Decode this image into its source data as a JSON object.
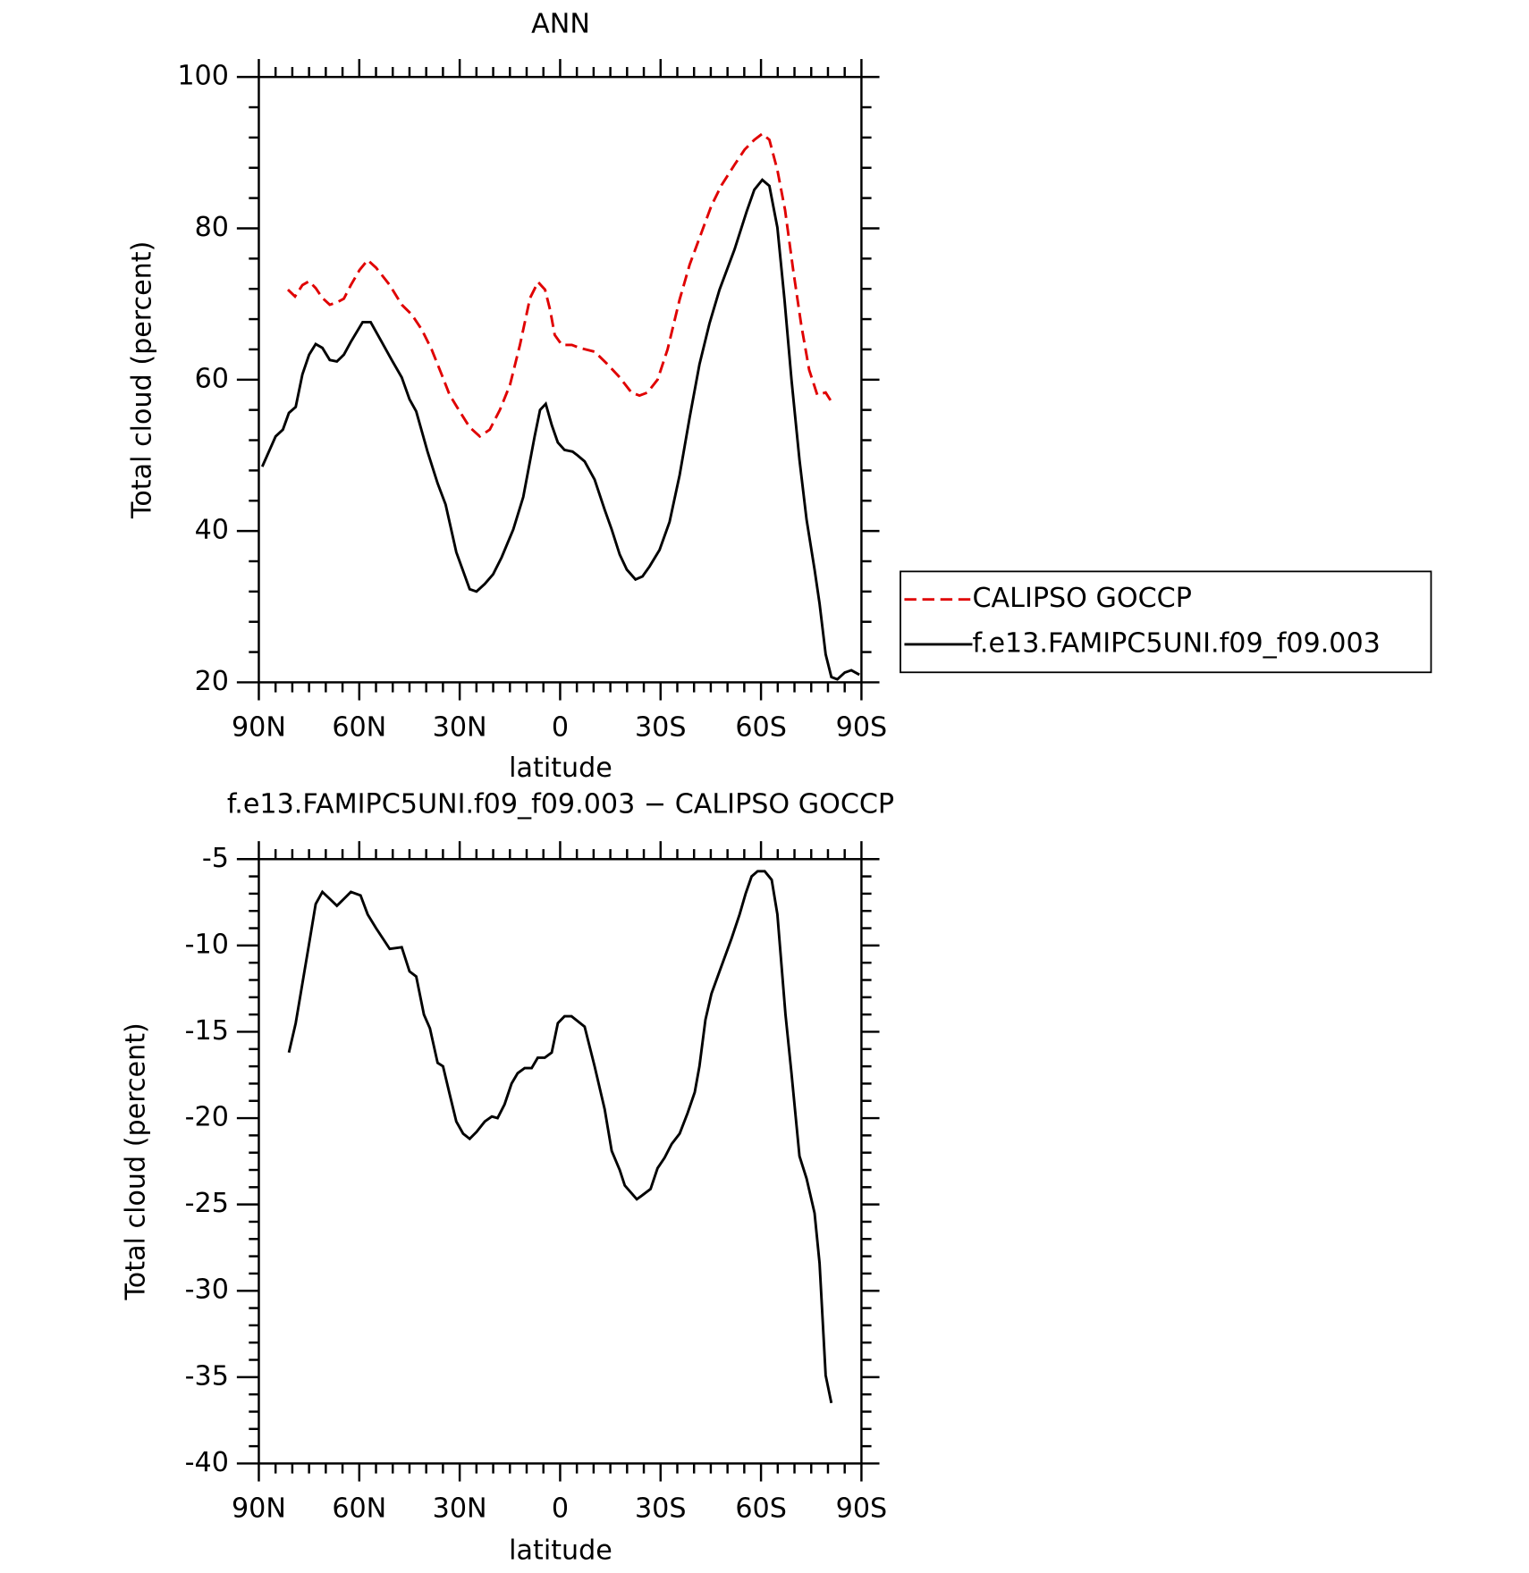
{
  "chart_data": [
    {
      "type": "line",
      "title": "ANN",
      "xlabel": "latitude",
      "ylabel": "Total cloud (percent)",
      "xlim": [
        90,
        -90
      ],
      "xticks": [
        {
          "value": 90,
          "label": "90N"
        },
        {
          "value": 60,
          "label": "60N"
        },
        {
          "value": 30,
          "label": "30N"
        },
        0,
        {
          "value": -30,
          "label": "30S"
        },
        {
          "value": -60,
          "label": "60S"
        },
        {
          "value": -90,
          "label": "90S"
        }
      ],
      "ylim": [
        20,
        100
      ],
      "yticks": [
        20,
        40,
        60,
        80,
        100
      ],
      "series": [
        {
          "name": "CALIPSO GOCCP",
          "color": "#e00000",
          "dash": "dashed",
          "x": [
            81.3,
            79.2,
            77,
            75,
            73,
            71,
            68.8,
            66.7,
            64.6,
            62.5,
            59.9,
            57.5,
            55,
            50.9,
            47.3,
            44.3,
            41.3,
            38.4,
            35.4,
            33,
            30,
            27,
            24,
            21,
            18,
            15,
            12,
            9,
            6.6,
            4.5,
            3,
            1.6,
            -0.5,
            -3.5,
            -5.8,
            -10.3,
            -14.2,
            -17.8,
            -21.3,
            -23.7,
            -26.1,
            -29.1,
            -32.1,
            -35.7,
            -38.7,
            -41.6,
            -45.2,
            -48.2,
            -52.1,
            -55.1,
            -58,
            -60.4,
            -62.5,
            -64.9,
            -67.2,
            -69.6,
            -72,
            -74.4,
            -76.8,
            -79.3,
            -81
          ],
          "values": [
            71.9,
            71,
            72.5,
            73,
            72.1,
            70.8,
            69.9,
            70.2,
            70.7,
            72.5,
            74.5,
            75.8,
            74.8,
            72.5,
            69.9,
            68.6,
            66.6,
            64,
            60.7,
            58,
            55.8,
            53.7,
            52.5,
            53.4,
            56,
            59.3,
            64.6,
            70.8,
            72.9,
            71.9,
            69.2,
            65.9,
            64.6,
            64.6,
            64.2,
            63.7,
            62,
            60.3,
            58.3,
            57.9,
            58.3,
            60,
            64,
            70.6,
            75.2,
            78.7,
            83,
            85.7,
            88.4,
            90.4,
            91.7,
            92.5,
            91.7,
            87.7,
            82.4,
            74.5,
            67.3,
            61.3,
            58,
            58.3,
            57.1
          ]
        },
        {
          "name": "f.e13.FAMIPC5UNI.f09_f09.003",
          "color": "#000000",
          "dash": "solid",
          "x": [
            89,
            86.7,
            85,
            82.8,
            81,
            79,
            77,
            75,
            73,
            71,
            68.8,
            66.7,
            64.6,
            62.5,
            59,
            56.6,
            53.3,
            50.3,
            47.3,
            45,
            43,
            39.6,
            36.6,
            34.2,
            31,
            27,
            25,
            22.5,
            20,
            17.5,
            14,
            11,
            7.6,
            6,
            4.3,
            2.5,
            0.7,
            -1.3,
            -3.7,
            -5.2,
            -7.3,
            -10.3,
            -13.3,
            -15.4,
            -17.8,
            -19.9,
            -22.5,
            -24.6,
            -26.7,
            -29.7,
            -32.7,
            -35.7,
            -38.7,
            -41.6,
            -44.6,
            -47.6,
            -52.1,
            -55.7,
            -58,
            -60.4,
            -62.5,
            -64.9,
            -67,
            -69.1,
            -71.5,
            -73.6,
            -76,
            -77.5,
            -79.3,
            -81,
            -82.8,
            -85,
            -87,
            -89.4
          ],
          "values": [
            48.5,
            50.8,
            52.5,
            53.4,
            55.6,
            56.4,
            60.7,
            63.3,
            64.7,
            64.2,
            62.6,
            62.4,
            63.3,
            65,
            67.6,
            67.6,
            65,
            62.6,
            60.3,
            57.4,
            55.8,
            50.5,
            46.3,
            43.5,
            37.2,
            32.3,
            32,
            33,
            34.3,
            36.5,
            40.2,
            44.5,
            52.5,
            56,
            56.8,
            54,
            51.7,
            50.7,
            50.5,
            50,
            49.2,
            46.8,
            42.8,
            40.2,
            36.9,
            34.9,
            33.6,
            34,
            35.3,
            37.5,
            41.2,
            47.4,
            55,
            62,
            67.4,
            71.9,
            77.2,
            82.2,
            85.1,
            86.4,
            85.6,
            80.1,
            70.6,
            60,
            49.4,
            41.5,
            34.9,
            30.4,
            23.7,
            20.7,
            20.4,
            21.3,
            21.6,
            21
          ]
        }
      ]
    },
    {
      "type": "line",
      "title": "f.e13.FAMIPC5UNI.f09_f09.003 − CALIPSO GOCCP",
      "xlabel": "latitude",
      "ylabel": "Total cloud (percent)",
      "xlim": [
        90,
        -90
      ],
      "xticks": [
        {
          "value": 90,
          "label": "90N"
        },
        {
          "value": 60,
          "label": "60N"
        },
        {
          "value": 30,
          "label": "30N"
        },
        0,
        {
          "value": -30,
          "label": "30S"
        },
        {
          "value": -60,
          "label": "60S"
        },
        {
          "value": -90,
          "label": "90S"
        }
      ],
      "ylim": [
        -40,
        -5
      ],
      "yticks": [
        -40,
        -35,
        -30,
        -25,
        -20,
        -15,
        -10,
        -5
      ],
      "color": "#000000",
      "x": [
        81,
        79,
        77,
        75,
        73,
        71,
        68.8,
        66.7,
        64.6,
        62.5,
        59.6,
        57.5,
        55,
        50.9,
        47.3,
        45,
        43,
        40.7,
        38.9,
        36.6,
        35,
        33,
        31,
        29,
        27,
        25,
        22.5,
        20.4,
        18.7,
        16.6,
        14.5,
        12.7,
        10.6,
        8.5,
        6.7,
        4.6,
        2.5,
        0.7,
        -1.3,
        -3.4,
        -7.3,
        -10.3,
        -13.3,
        -15.4,
        -17.8,
        -19.3,
        -22.9,
        -24.3,
        -27,
        -29.1,
        -31.2,
        -33.3,
        -35.7,
        -38.1,
        -40.2,
        -41.6,
        -43.4,
        -45.2,
        -47.6,
        -51.2,
        -53.6,
        -55.4,
        -57.2,
        -59,
        -61.1,
        -63.2,
        -64.9,
        -67.3,
        -69.1,
        -71.5,
        -73.6,
        -76,
        -77.5,
        -79.3,
        -81
      ],
      "values": [
        -16.2,
        -14.5,
        -12.2,
        -9.9,
        -7.6,
        -6.9,
        -7.3,
        -7.7,
        -7.3,
        -6.9,
        -7.1,
        -8.2,
        -9,
        -10.2,
        -10.1,
        -11.5,
        -11.8,
        -14,
        -14.8,
        -16.8,
        -17,
        -18.6,
        -20.2,
        -20.9,
        -21.2,
        -20.8,
        -20.2,
        -19.9,
        -20,
        -19.2,
        -18,
        -17.4,
        -17.1,
        -17.1,
        -16.5,
        -16.5,
        -16.2,
        -14.5,
        -14.1,
        -14.1,
        -14.7,
        -17,
        -19.5,
        -21.9,
        -23,
        -23.9,
        -24.7,
        -24.5,
        -24.1,
        -22.9,
        -22.3,
        -21.5,
        -20.9,
        -19.7,
        -18.5,
        -17,
        -14.3,
        -12.8,
        -11.5,
        -9.6,
        -8.2,
        -7,
        -6,
        -5.7,
        -5.7,
        -6.2,
        -8.2,
        -14,
        -17.4,
        -22.2,
        -23.5,
        -25.5,
        -28.4,
        -34.9,
        -36.5
      ]
    }
  ]
}
